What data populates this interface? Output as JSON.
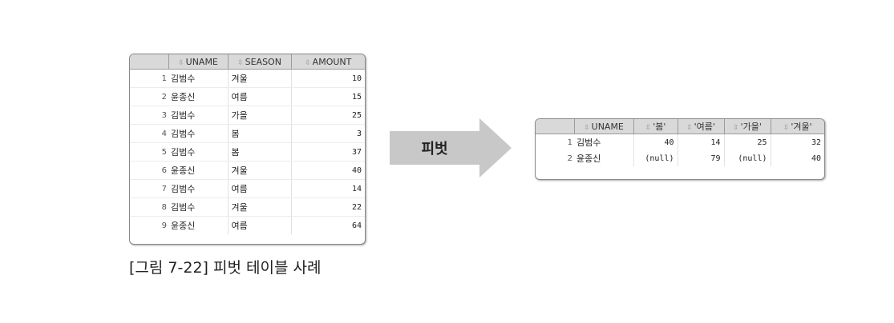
{
  "source_table": {
    "columns": [
      "UNAME",
      "SEASON",
      "AMOUNT"
    ],
    "rows": [
      {
        "n": "1",
        "uname": "김범수",
        "season": "겨울",
        "amount": "10"
      },
      {
        "n": "2",
        "uname": "윤종신",
        "season": "여름",
        "amount": "15"
      },
      {
        "n": "3",
        "uname": "김범수",
        "season": "가을",
        "amount": "25"
      },
      {
        "n": "4",
        "uname": "김범수",
        "season": "봄",
        "amount": "3"
      },
      {
        "n": "5",
        "uname": "김범수",
        "season": "봄",
        "amount": "37"
      },
      {
        "n": "6",
        "uname": "윤종신",
        "season": "겨울",
        "amount": "40"
      },
      {
        "n": "7",
        "uname": "김범수",
        "season": "여름",
        "amount": "14"
      },
      {
        "n": "8",
        "uname": "김범수",
        "season": "겨울",
        "amount": "22"
      },
      {
        "n": "9",
        "uname": "윤종신",
        "season": "여름",
        "amount": "64"
      }
    ]
  },
  "arrow": {
    "label": "피벗"
  },
  "pivot_table": {
    "columns": [
      "UNAME",
      "'봄'",
      "'여름'",
      "'가을'",
      "'겨울'"
    ],
    "rows": [
      {
        "n": "1",
        "uname": "김범수",
        "spring": "40",
        "summer": "14",
        "autumn": "25",
        "winter": "32"
      },
      {
        "n": "2",
        "uname": "윤종신",
        "spring": "(null)",
        "summer": "79",
        "autumn": "(null)",
        "winter": "40"
      }
    ]
  },
  "caption": "[그림 7-22] 피벗 테이블 사례",
  "icons": {
    "sort": "sort-arrows-icon"
  },
  "colors": {
    "header_bg": "#d9d9d9",
    "arrow": "#c8c8c8",
    "border": "#8a8a8a"
  }
}
